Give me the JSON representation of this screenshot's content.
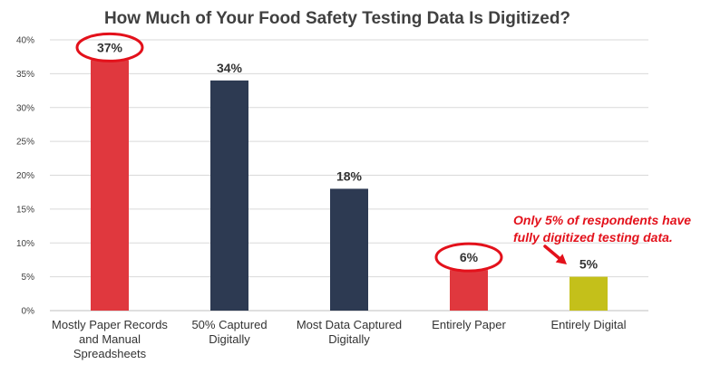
{
  "chart_data": {
    "type": "bar",
    "title": "How Much of Your Food Safety Testing Data Is Digitized?",
    "xlabel": "",
    "ylabel": "",
    "ylim": [
      0,
      40
    ],
    "yticks": [
      "0%",
      "5%",
      "10%",
      "15%",
      "20%",
      "25%",
      "30%",
      "35%",
      "40%"
    ],
    "ytick_values": [
      0,
      5,
      10,
      15,
      20,
      25,
      30,
      35,
      40
    ],
    "grid": true,
    "legend": "none",
    "categories": [
      [
        "Mostly Paper Records",
        "and Manual",
        "Spreadsheets"
      ],
      [
        "50% Captured",
        "Digitally"
      ],
      [
        "Most Data Captured",
        "Digitally"
      ],
      [
        "Entirely Paper"
      ],
      [
        "Entirely Digital"
      ]
    ],
    "values": [
      37,
      34,
      18,
      6,
      5
    ],
    "data_labels": [
      "37%",
      "34%",
      "18%",
      "6%",
      "5%"
    ],
    "bar_colors": [
      "#e0383e",
      "#2d3a52",
      "#2d3a52",
      "#e0383e",
      "#c4c01a"
    ],
    "highlighted": [
      true,
      false,
      false,
      true,
      false
    ],
    "highlight_color": "#e3111b",
    "annotation": {
      "lines": [
        "Only 5% of respondents have",
        "fully digitized testing data."
      ],
      "color": "#e3111b",
      "points_to": 4
    }
  }
}
